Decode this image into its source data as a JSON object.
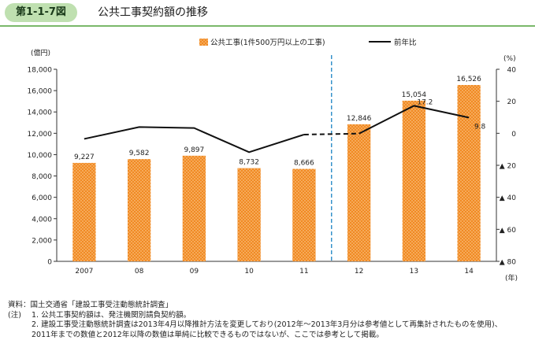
{
  "header": {
    "figure_number": "第1-1-7図",
    "title": "公共工事契約額の推移"
  },
  "chart_data": {
    "type": "bar",
    "categories": [
      "2007",
      "08",
      "09",
      "10",
      "11",
      "12",
      "13",
      "14"
    ],
    "bar_series": {
      "name": "公共工事(1件500万円以上の工事)",
      "values": [
        9227,
        9582,
        9897,
        8732,
        8666,
        12846,
        15054,
        16526
      ],
      "value_labels": [
        "9,227",
        "9,582",
        "9,897",
        "8,732",
        "8,666",
        "12,846",
        "15,054",
        "16,526"
      ],
      "color": "#f08a24"
    },
    "line_series": {
      "name": "前年比",
      "values": [
        -3.5,
        3.9,
        3.3,
        -11.8,
        -0.8,
        -0.2,
        17.2,
        9.8
      ],
      "value_labels": [
        "",
        "",
        "",
        "",
        "",
        "",
        "17.2",
        "9.8"
      ],
      "dashed_segment_categories": [
        "11",
        "12"
      ],
      "color": "#111111"
    },
    "left_axis": {
      "unit": "(億円)",
      "ylim": [
        0,
        18000
      ],
      "ticks": [
        0,
        2000,
        4000,
        6000,
        8000,
        10000,
        12000,
        14000,
        16000,
        18000
      ],
      "tick_labels": [
        "0",
        "2,000",
        "4,000",
        "6,000",
        "8,000",
        "10,000",
        "12,000",
        "14,000",
        "16,000",
        "18,000"
      ]
    },
    "right_axis": {
      "unit": "(%)",
      "ylim": [
        -80,
        40
      ],
      "ticks": [
        40,
        20,
        0,
        -20,
        -40,
        -60,
        -80
      ],
      "tick_labels": [
        "40",
        "20",
        "0",
        "▲ 20",
        "▲ 40",
        "▲ 60",
        "▲ 80"
      ]
    },
    "x_unit": "(年)",
    "divider_between": [
      "11",
      "12"
    ],
    "grid": false,
    "legend_position": "top"
  },
  "notes": {
    "source": "資料：国土交通省「建設工事受注動態統計調査」",
    "note_label": "(注)",
    "note1": "1. 公共工事契約額は、発注機関別請負契約額。",
    "note2": "2. 建設工事受注動態統計調査は2013年4月以降推計方法を変更しており(2012年～2013年3月分は参考値として再集計されたものを使用)、",
    "note2_cont": "2011年までの数値と2012年以降の数値は単純に比較できるものではないが、ここでは参考として掲載。"
  },
  "colors": {
    "bar_fill": "#f08a24",
    "bar_dot": "#ffd9a8",
    "line": "#111111",
    "divider": "#2a8cc8",
    "header_tab": "#bfe0b0",
    "header_rule": "#7ab86a"
  }
}
